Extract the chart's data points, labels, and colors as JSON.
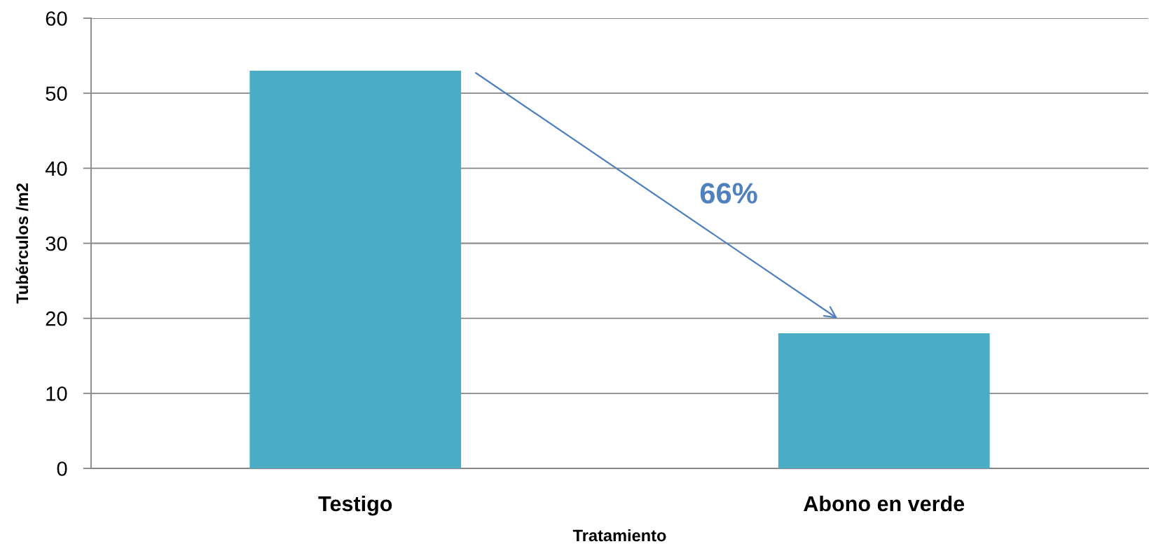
{
  "chart_data": {
    "type": "bar",
    "xlabel": "Tratamiento",
    "ylabel": "Tubérculos /m2",
    "categories": [
      "Testigo",
      "Abono en verde"
    ],
    "values": [
      53,
      18
    ],
    "color": "#4bacc6",
    "ylim": [
      0,
      60
    ],
    "yticks": [
      0,
      10,
      20,
      30,
      40,
      50,
      60
    ],
    "grid": "y",
    "annotations": [
      "66%"
    ]
  }
}
